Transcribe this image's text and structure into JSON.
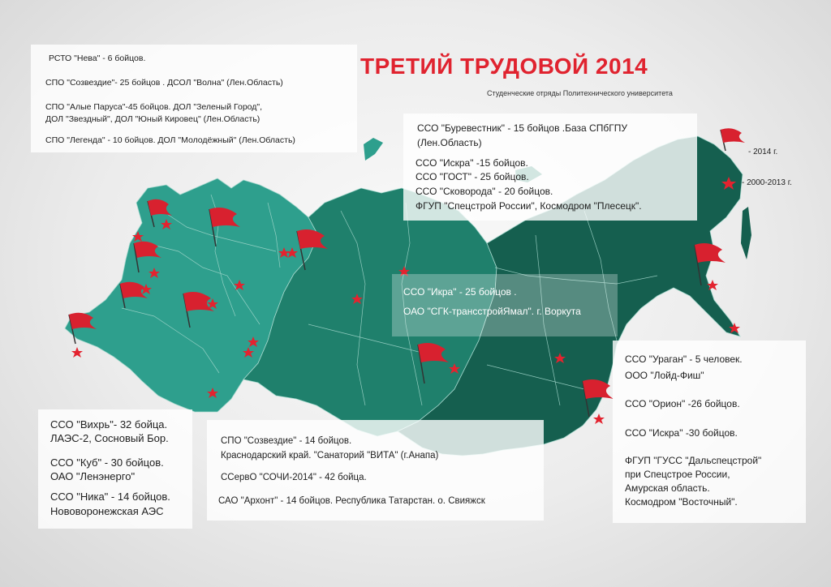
{
  "title": "ТРЕТИЙ ТРУДОВОЙ 2014",
  "subtitle": "Студенческие отряды Политехнического университета",
  "legend": {
    "flag_label": "-      2014 г.",
    "star_label": "-    2000-2013 г.",
    "colors": {
      "flag": "#d8212f",
      "star": "#e0232f"
    }
  },
  "map_colors": {
    "west": "#2c9e8c",
    "central": "#1c7d69",
    "east": "#135c4c",
    "borders": "#9fd3c8",
    "region_fill_light": "#3aa895"
  },
  "panels": {
    "northwest": [
      "РСТО \"Нева\" - 6 бойцов.",
      "СПО \"Созвездие\"- 25 бойцов . ДСОЛ \"Волна\" (Лен.Область)",
      "СПО \"Алые Паруса\"-45 бойцов. ДОЛ \"Зеленый Город\",",
      "ДОЛ \"Звездный\", ДОЛ \"Юный Кировец\" (Лен.Область)",
      "СПО \"Легенда\" - 10 бойцов. ДОЛ \"Молодёжный\" (Лен.Область)"
    ],
    "north": [
      "ССО \"Буревестник\" - 15 бойцов .База СПбГПУ",
      "(Лен.Область)",
      "ССО \"Искра\" -15 бойцов.",
      "ССО \"ГОСТ\" - 25 бойцов.",
      "ССО \"Сковорода\" - 20 бойцов.",
      "ФГУП \"Спецстрой России\", Космодром \"Плесецк\"."
    ],
    "center": [
      "ССО \"Икра\" - 25 бойцов .",
      "ОАО \"СГК-трансстройЯмал\". г. Воркута"
    ],
    "east": [
      "ССО \"Ураган\" - 5 человек.",
      "ООО \"Лойд-Фиш\"",
      "ССО \"Орион\" -26 бойцов.",
      "ССО \"Искра\" -30 бойцов.",
      "ФГУП \"ГУСС \"Дальспецстрой\"",
      "при Спецстрое России,",
      "Амурская область.",
      "Космодром \"Восточный\"."
    ],
    "southwest": [
      "ССО \"Вихрь\"- 32  бойца.",
      "ЛАЭС-2, Сосновый Бор.",
      "ССО \"Куб\" - 30 бойцов.",
      "ОАО \"Ленэнерго\"",
      "ССО \"Ника\" - 14 бойцов.",
      "Нововоронежская АЭС"
    ],
    "south": [
      "СПО \"Созвездие\" - 14 бойцов.",
      "Краснодарский край. \"Санаторий \"ВИТА\" (г.Анапа)",
      "ССервО \"СОЧИ-2014\" - 42 бойца.",
      "САО \"Архонт\" - 14 бойцов.  Республика Татарстан. о. Свияжск"
    ]
  }
}
